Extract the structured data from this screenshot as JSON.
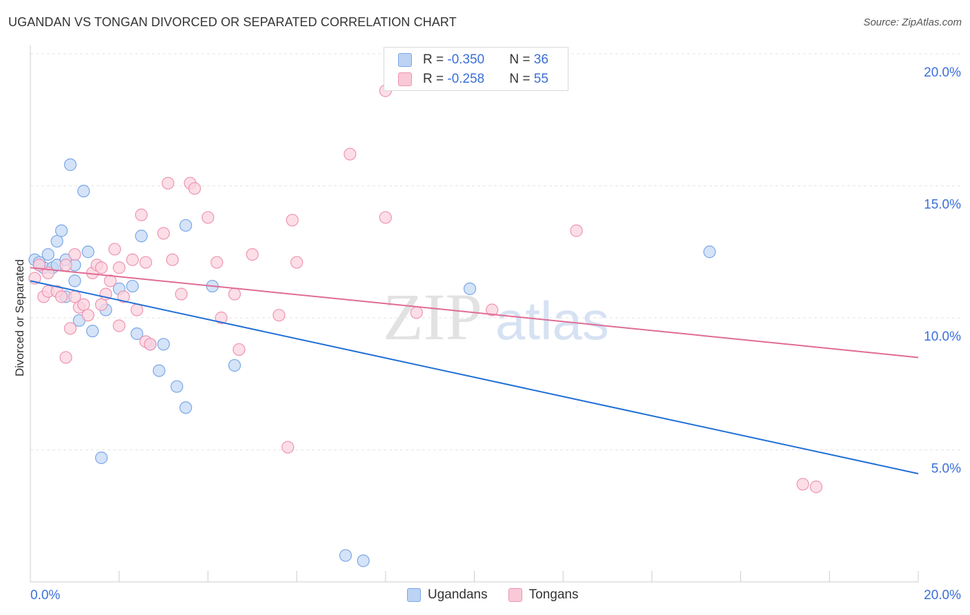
{
  "title": "UGANDAN VS TONGAN DIVORCED OR SEPARATED CORRELATION CHART",
  "source": "Source: ZipAtlas.com",
  "watermark": {
    "zip": "ZIP",
    "atlas": "atlas"
  },
  "legend": {
    "r_label": "R = ",
    "n_label": "N = ",
    "entries": [
      {
        "name": "Ugandans",
        "r": "-0.350",
        "n": "36",
        "color": "#7aa7e8",
        "fill": "#bcd3f3"
      },
      {
        "name": "Tongans",
        "r": "-0.258",
        "n": "55",
        "color": "#ee94b0",
        "fill": "#f9c9d7"
      }
    ]
  },
  "chart_data": {
    "type": "scatter",
    "title": "UGANDAN VS TONGAN DIVORCED OR SEPARATED CORRELATION CHART",
    "xlabel": "",
    "ylabel": "Divorced or Separated",
    "xlim": [
      0,
      20
    ],
    "ylim": [
      0,
      20
    ],
    "x_tick_labels": [
      "0.0%",
      "20.0%"
    ],
    "y_tick_labels": [
      "5.0%",
      "10.0%",
      "15.0%",
      "20.0%"
    ],
    "y_ticks": [
      5,
      10,
      15,
      20
    ],
    "grid": true,
    "series": [
      {
        "name": "Ugandans",
        "color": "#1f6fd6",
        "point_fill": "#c5d9f4",
        "point_stroke": "#7aa7e8",
        "trend": {
          "x0": 0,
          "y0": 11.4,
          "x1": 20,
          "y1": 4.1
        },
        "points": [
          [
            0.1,
            12.2
          ],
          [
            0.2,
            12.0
          ],
          [
            0.3,
            11.9
          ],
          [
            0.4,
            12.4
          ],
          [
            0.5,
            11.9
          ],
          [
            0.6,
            12.0
          ],
          [
            0.6,
            12.9
          ],
          [
            0.7,
            13.3
          ],
          [
            0.8,
            12.2
          ],
          [
            0.8,
            10.8
          ],
          [
            0.9,
            15.8
          ],
          [
            1.0,
            12.0
          ],
          [
            1.0,
            11.4
          ],
          [
            1.1,
            9.9
          ],
          [
            1.2,
            14.8
          ],
          [
            1.3,
            12.5
          ],
          [
            1.4,
            9.5
          ],
          [
            1.6,
            4.7
          ],
          [
            1.7,
            10.3
          ],
          [
            2.0,
            11.1
          ],
          [
            2.3,
            11.2
          ],
          [
            2.4,
            9.4
          ],
          [
            2.5,
            13.1
          ],
          [
            2.7,
            9.0
          ],
          [
            2.9,
            8.0
          ],
          [
            3.0,
            9.0
          ],
          [
            3.3,
            7.4
          ],
          [
            3.5,
            13.5
          ],
          [
            3.5,
            6.6
          ],
          [
            4.1,
            11.2
          ],
          [
            4.6,
            8.2
          ],
          [
            7.1,
            1.0
          ],
          [
            7.5,
            0.8
          ],
          [
            9.9,
            11.1
          ],
          [
            15.3,
            12.5
          ],
          [
            0.2,
            12.1
          ]
        ]
      },
      {
        "name": "Tongans",
        "color": "#e06b94",
        "point_fill": "#fbd3df",
        "point_stroke": "#ee94b0",
        "trend": {
          "x0": 0,
          "y0": 11.9,
          "x1": 20,
          "y1": 8.5
        },
        "points": [
          [
            0.1,
            11.5
          ],
          [
            0.2,
            12.0
          ],
          [
            0.3,
            10.8
          ],
          [
            0.4,
            11.0
          ],
          [
            0.4,
            11.7
          ],
          [
            0.6,
            11.0
          ],
          [
            0.7,
            10.8
          ],
          [
            0.8,
            12.0
          ],
          [
            0.8,
            8.5
          ],
          [
            0.9,
            9.6
          ],
          [
            1.0,
            12.4
          ],
          [
            1.0,
            10.8
          ],
          [
            1.1,
            10.4
          ],
          [
            1.2,
            10.5
          ],
          [
            1.3,
            10.1
          ],
          [
            1.4,
            11.7
          ],
          [
            1.5,
            12.0
          ],
          [
            1.6,
            11.9
          ],
          [
            1.6,
            10.5
          ],
          [
            1.7,
            10.9
          ],
          [
            1.8,
            11.4
          ],
          [
            1.9,
            12.6
          ],
          [
            2.0,
            11.9
          ],
          [
            2.0,
            9.7
          ],
          [
            2.1,
            10.8
          ],
          [
            2.3,
            12.2
          ],
          [
            2.4,
            10.3
          ],
          [
            2.5,
            13.9
          ],
          [
            2.6,
            12.1
          ],
          [
            2.6,
            9.1
          ],
          [
            2.7,
            9.0
          ],
          [
            3.0,
            13.2
          ],
          [
            3.1,
            15.1
          ],
          [
            3.2,
            12.2
          ],
          [
            3.4,
            10.9
          ],
          [
            3.6,
            15.1
          ],
          [
            3.7,
            14.9
          ],
          [
            4.0,
            13.8
          ],
          [
            4.2,
            12.1
          ],
          [
            4.3,
            10.0
          ],
          [
            4.6,
            10.9
          ],
          [
            4.7,
            8.8
          ],
          [
            5.0,
            12.4
          ],
          [
            5.6,
            10.1
          ],
          [
            5.8,
            5.1
          ],
          [
            5.9,
            13.7
          ],
          [
            6.0,
            12.1
          ],
          [
            7.2,
            16.2
          ],
          [
            8.0,
            18.6
          ],
          [
            8.0,
            13.8
          ],
          [
            8.7,
            10.2
          ],
          [
            10.4,
            10.3
          ],
          [
            12.3,
            13.3
          ],
          [
            17.4,
            3.7
          ],
          [
            17.7,
            3.6
          ]
        ]
      }
    ]
  }
}
